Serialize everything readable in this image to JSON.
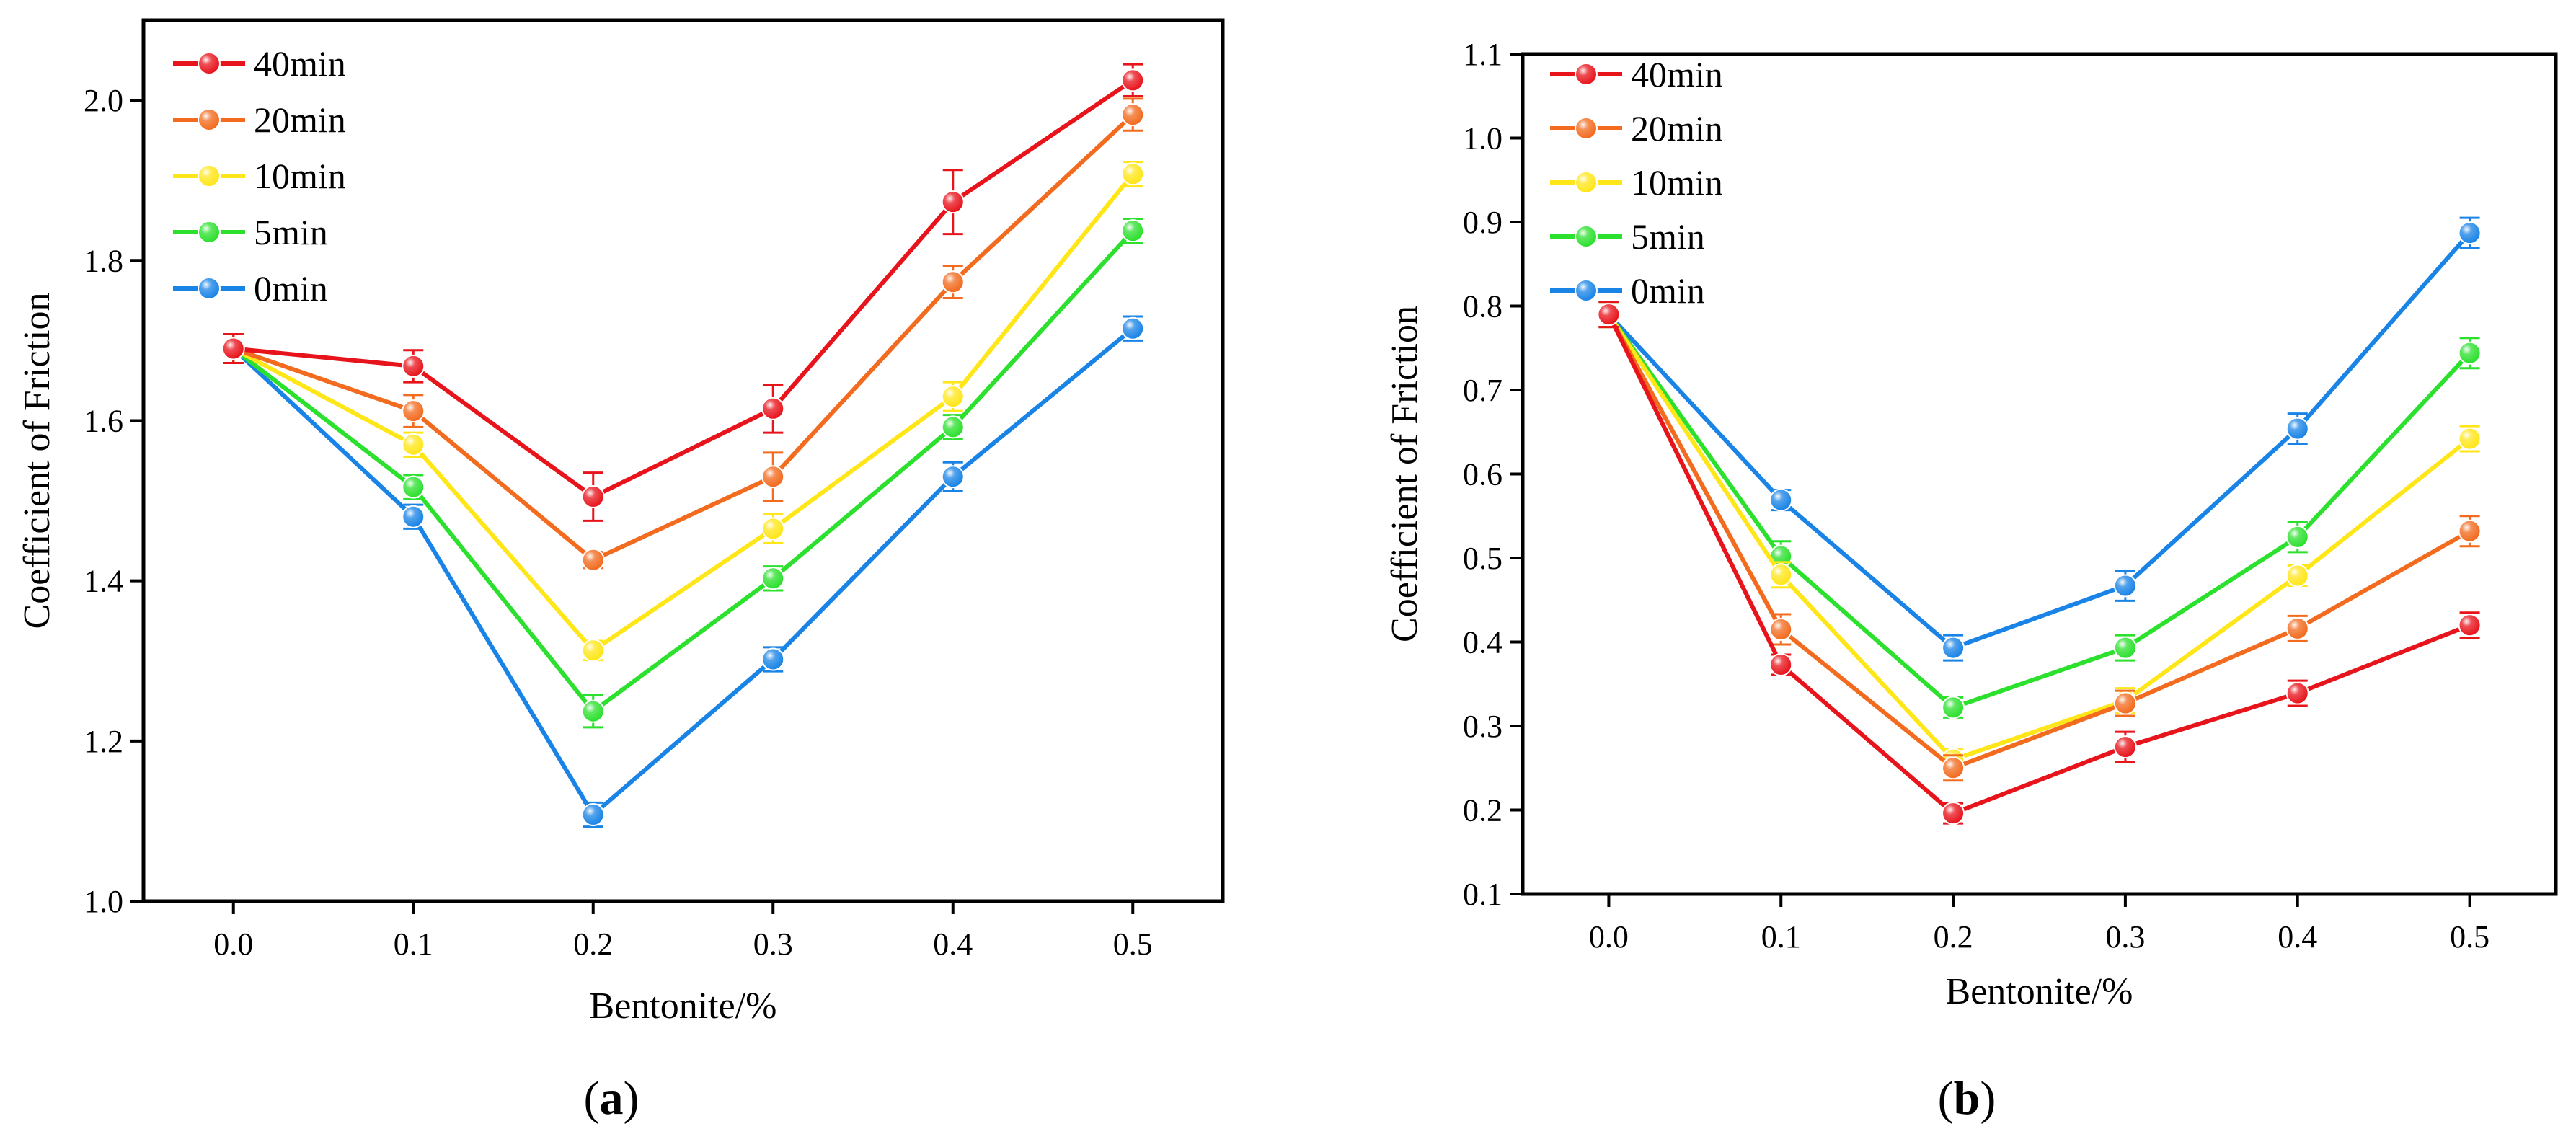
{
  "chart_data": [
    {
      "type": "line",
      "panel_label": "a",
      "title": "",
      "xlabel": "Bentonite/%",
      "ylabel": "Coefficient of Friction",
      "x": [
        0.0,
        0.1,
        0.2,
        0.3,
        0.4,
        0.5
      ],
      "x_tick_labels": [
        "0.0",
        "0.1",
        "0.2",
        "0.3",
        "0.4",
        "0.5"
      ],
      "xlim": [
        -0.05,
        0.55
      ],
      "ylim": [
        1.0,
        2.1
      ],
      "y_ticks": [
        1.0,
        1.2,
        1.4,
        1.6,
        1.8,
        2.0
      ],
      "y_tick_labels": [
        "1.0",
        "1.2",
        "1.4",
        "1.6",
        "1.8",
        "2.0"
      ],
      "legend_position": "top-left",
      "series": [
        {
          "name": "40min",
          "color": "#e8141c",
          "values": [
            1.69,
            1.668,
            1.505,
            1.615,
            1.873,
            2.025
          ],
          "errors": [
            0.018,
            0.02,
            0.03,
            0.03,
            0.04,
            0.02
          ]
        },
        {
          "name": "20min",
          "color": "#f26b1f",
          "values": [
            1.69,
            1.612,
            1.426,
            1.53,
            1.773,
            1.982
          ],
          "errors": [
            0.018,
            0.02,
            0.01,
            0.03,
            0.02,
            0.02
          ]
        },
        {
          "name": "10min",
          "color": "#ffe619",
          "values": [
            1.69,
            1.57,
            1.313,
            1.465,
            1.63,
            1.908
          ],
          "errors": [
            0.018,
            0.015,
            0.012,
            0.018,
            0.018,
            0.015
          ]
        },
        {
          "name": "5min",
          "color": "#2ce02e",
          "values": [
            1.69,
            1.517,
            1.237,
            1.403,
            1.592,
            1.837
          ],
          "errors": [
            0.018,
            0.015,
            0.02,
            0.015,
            0.015,
            0.015
          ]
        },
        {
          "name": "0min",
          "color": "#1a84e6",
          "values": [
            1.69,
            1.48,
            1.108,
            1.302,
            1.53,
            1.715
          ],
          "errors": [
            0.018,
            0.015,
            0.015,
            0.015,
            0.018,
            0.015
          ]
        }
      ]
    },
    {
      "type": "line",
      "panel_label": "b",
      "title": "",
      "xlabel": "Bentonite/%",
      "ylabel": "Coefficient of Friction",
      "x": [
        0.0,
        0.1,
        0.2,
        0.3,
        0.4,
        0.5
      ],
      "x_tick_labels": [
        "0.0",
        "0.1",
        "0.2",
        "0.3",
        "0.4",
        "0.5"
      ],
      "xlim": [
        -0.05,
        0.55
      ],
      "ylim": [
        0.1,
        1.1
      ],
      "y_ticks": [
        0.1,
        0.2,
        0.3,
        0.4,
        0.5,
        0.6,
        0.7,
        0.8,
        0.9,
        1.0,
        1.1
      ],
      "y_tick_labels": [
        "0.1",
        "0.2",
        "0.3",
        "0.4",
        "0.5",
        "0.6",
        "0.7",
        "0.8",
        "0.9",
        "1.0",
        "1.1"
      ],
      "legend_position": "top-left",
      "series": [
        {
          "name": "40min",
          "color": "#e8141c",
          "values": [
            0.79,
            0.373,
            0.196,
            0.275,
            0.339,
            0.42
          ],
          "errors": [
            0.015,
            0.012,
            0.012,
            0.018,
            0.015,
            0.015
          ]
        },
        {
          "name": "20min",
          "color": "#f26b1f",
          "values": [
            0.79,
            0.415,
            0.25,
            0.327,
            0.416,
            0.532
          ],
          "errors": [
            0.015,
            0.018,
            0.015,
            0.015,
            0.015,
            0.018
          ]
        },
        {
          "name": "10min",
          "color": "#ffe619",
          "values": [
            0.79,
            0.48,
            0.26,
            0.33,
            0.479,
            0.642
          ],
          "errors": [
            0.015,
            0.015,
            0.012,
            0.015,
            0.012,
            0.015
          ]
        },
        {
          "name": "5min",
          "color": "#2ce02e",
          "values": [
            0.79,
            0.502,
            0.322,
            0.393,
            0.525,
            0.744
          ],
          "errors": [
            0.015,
            0.018,
            0.012,
            0.015,
            0.018,
            0.018
          ]
        },
        {
          "name": "0min",
          "color": "#1a84e6",
          "values": [
            0.79,
            0.569,
            0.393,
            0.467,
            0.654,
            0.887
          ],
          "errors": [
            0.015,
            0.012,
            0.015,
            0.018,
            0.018,
            0.018
          ]
        }
      ]
    }
  ]
}
